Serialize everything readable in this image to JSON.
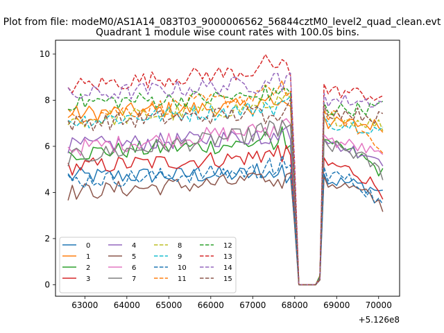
{
  "chart_data": {
    "type": "line",
    "suptitle": "Plot from file: modeM0/AS1A14_083T03_9000006562_56844cztM0_level2_quad_clean.evt",
    "title": "Quadrant 1 module wise count rates with 100.0s bins.",
    "xlabel": "",
    "ylabel": "",
    "x_offset_label": "+5.126e8",
    "xlim": [
      62300,
      70500
    ],
    "ylim": [
      -0.5,
      10.6
    ],
    "x_ticks": [
      63000,
      64000,
      65000,
      66000,
      67000,
      68000,
      69000,
      70000
    ],
    "x_tick_labels": [
      "63000",
      "64000",
      "65000",
      "66000",
      "67000",
      "68000",
      "69000",
      "70000"
    ],
    "y_ticks": [
      0,
      2,
      4,
      6,
      8,
      10
    ],
    "y_tick_labels": [
      "0",
      "2",
      "4",
      "6",
      "8",
      "10"
    ],
    "x_start": 62600,
    "x_step": 100,
    "gap_points": 7,
    "legend_location": "lower left",
    "legend_ncol": 4,
    "series": [
      {
        "name": "0",
        "color": "#1f77b4",
        "dash": "solid",
        "base": 4.7,
        "end": 4.8,
        "post": 4.5,
        "post_end": 4.0
      },
      {
        "name": "1",
        "color": "#ff7f0e",
        "dash": "solid",
        "base": 7.4,
        "end": 7.8,
        "post": 7.0,
        "post_end": 6.9
      },
      {
        "name": "2",
        "color": "#2ca02c",
        "dash": "solid",
        "base": 5.7,
        "end": 6.2,
        "post": 6.0,
        "post_end": 4.8
      },
      {
        "name": "3",
        "color": "#d62728",
        "dash": "solid",
        "base": 5.1,
        "end": 5.6,
        "post": 5.2,
        "post_end": 4.0
      },
      {
        "name": "4",
        "color": "#9467bd",
        "dash": "solid",
        "base": 6.0,
        "end": 6.5,
        "post": 6.0,
        "post_end": 5.4
      },
      {
        "name": "5",
        "color": "#8c564b",
        "dash": "solid",
        "base": 4.0,
        "end": 4.6,
        "post": 4.4,
        "post_end": 3.4
      },
      {
        "name": "6",
        "color": "#e377c2",
        "dash": "solid",
        "base": 5.9,
        "end": 6.8,
        "post": 6.2,
        "post_end": 5.5
      },
      {
        "name": "7",
        "color": "#7f7f7f",
        "dash": "solid",
        "base": 5.5,
        "end": 6.7,
        "post": 6.0,
        "post_end": 4.8
      },
      {
        "name": "8",
        "color": "#bcbd22",
        "dash": "dashed",
        "base": 7.1,
        "end": 7.8,
        "post": 7.2,
        "post_end": 6.9
      },
      {
        "name": "9",
        "color": "#17becf",
        "dash": "dashed",
        "base": 7.1,
        "end": 7.7,
        "post": 7.0,
        "post_end": 6.7
      },
      {
        "name": "10",
        "color": "#1f77b4",
        "dash": "dashed",
        "base": 4.5,
        "end": 5.0,
        "post": 4.8,
        "post_end": 3.4
      },
      {
        "name": "11",
        "color": "#ff7f0e",
        "dash": "dashed",
        "base": 7.3,
        "end": 8.3,
        "post": 7.3,
        "post_end": 5.7
      },
      {
        "name": "12",
        "color": "#2ca02c",
        "dash": "dashed",
        "base": 7.9,
        "end": 8.2,
        "post": 7.6,
        "post_end": 7.7
      },
      {
        "name": "13",
        "color": "#d62728",
        "dash": "dashed",
        "base": 8.6,
        "end": 9.4,
        "post": 8.4,
        "post_end": 8.1
      },
      {
        "name": "14",
        "color": "#9467bd",
        "dash": "dashed",
        "base": 8.2,
        "end": 8.8,
        "post": 8.0,
        "post_end": 7.9
      },
      {
        "name": "15",
        "color": "#8c564b",
        "dash": "dashed",
        "base": 7.0,
        "end": 7.5,
        "post": 7.5,
        "post_end": 7.2
      }
    ]
  }
}
